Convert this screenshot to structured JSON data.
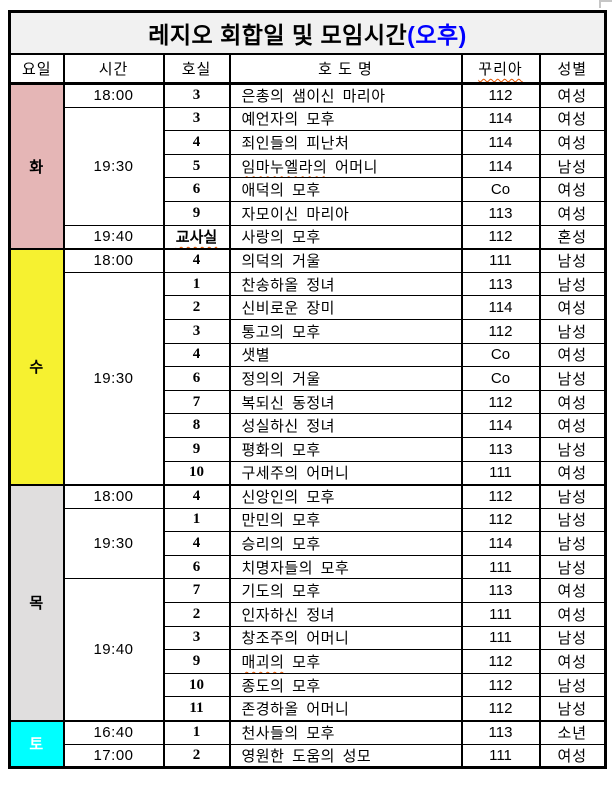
{
  "title": {
    "main": "레지오 회합일 및 모임시간",
    "suffix": "(오후)",
    "suffix_color": "#0000ff"
  },
  "header": [
    "요일",
    "시간",
    "호실",
    "호 도 명",
    "꾸리아",
    "성별"
  ],
  "misspelled_words": [
    "꾸리아",
    "임마누엘라의",
    "교사실",
    "매괴의"
  ],
  "colors": {
    "tue_bg": "#e5b6b6",
    "wed_bg": "#f6f130",
    "thu_bg": "#e0dede",
    "sat_bg": "#00ffff",
    "sat_text": "#ffffff",
    "title_bg": "#f1f1f1",
    "squiggle": "#e25400",
    "border": "#000000"
  },
  "sections": [
    {
      "day": "화",
      "bg": "#e5b6b6",
      "fg": "#000000",
      "groups": [
        {
          "time": "18:00",
          "rows": [
            {
              "room": "3",
              "name": "은총의 샘이신 마리아",
              "curia": "112",
              "gender": "여성"
            }
          ]
        },
        {
          "time": "19:30",
          "rows": [
            {
              "room": "3",
              "name": "예언자의 모후",
              "curia": "114",
              "gender": "여성"
            },
            {
              "room": "4",
              "name": "죄인들의 피난처",
              "curia": "114",
              "gender": "여성"
            },
            {
              "room": "5",
              "name": "임마누엘라의 어머니",
              "curia": "114",
              "gender": "남성"
            },
            {
              "room": "6",
              "name": "애덕의 모후",
              "curia": "Co",
              "gender": "여성"
            },
            {
              "room": "9",
              "name": "자모이신 마리아",
              "curia": "113",
              "gender": "여성"
            }
          ]
        },
        {
          "time": "19:40",
          "rows": [
            {
              "room": "교사실",
              "name": "사랑의 모후",
              "curia": "112",
              "gender": "혼성"
            }
          ]
        }
      ]
    },
    {
      "day": "수",
      "bg": "#f6f130",
      "fg": "#000000",
      "groups": [
        {
          "time": "18:00",
          "rows": [
            {
              "room": "4",
              "name": "의덕의 거울",
              "curia": "111",
              "gender": "남성"
            }
          ]
        },
        {
          "time": "19:30",
          "rows": [
            {
              "room": "1",
              "name": "찬송하올 정녀",
              "curia": "113",
              "gender": "남성"
            },
            {
              "room": "2",
              "name": "신비로운 장미",
              "curia": "114",
              "gender": "여성"
            },
            {
              "room": "3",
              "name": "통고의 모후",
              "curia": "112",
              "gender": "남성"
            },
            {
              "room": "4",
              "name": "샛별",
              "curia": "Co",
              "gender": "여성"
            },
            {
              "room": "6",
              "name": "정의의 거울",
              "curia": "Co",
              "gender": "남성"
            },
            {
              "room": "7",
              "name": "복되신 동정녀",
              "curia": "112",
              "gender": "여성"
            },
            {
              "room": "8",
              "name": "성실하신 정녀",
              "curia": "114",
              "gender": "여성"
            },
            {
              "room": "9",
              "name": "평화의 모후",
              "curia": "113",
              "gender": "남성"
            },
            {
              "room": "10",
              "name": "구세주의 어머니",
              "curia": "111",
              "gender": "여성"
            }
          ]
        }
      ]
    },
    {
      "day": "목",
      "bg": "#e0dede",
      "fg": "#000000",
      "groups": [
        {
          "time": "18:00",
          "rows": [
            {
              "room": "4",
              "name": "신앙인의 모후",
              "curia": "112",
              "gender": "남성"
            }
          ]
        },
        {
          "time": "19:30",
          "rows": [
            {
              "room": "1",
              "name": "만민의 모후",
              "curia": "112",
              "gender": "남성"
            },
            {
              "room": "4",
              "name": "승리의 모후",
              "curia": "114",
              "gender": "남성"
            },
            {
              "room": "6",
              "name": "치명자들의 모후",
              "curia": "111",
              "gender": "남성"
            }
          ]
        },
        {
          "time": "19:40",
          "rows": [
            {
              "room": "7",
              "name": "기도의 모후",
              "curia": "113",
              "gender": "여성"
            },
            {
              "room": "2",
              "name": "인자하신 정녀",
              "curia": "111",
              "gender": "여성"
            },
            {
              "room": "3",
              "name": "창조주의 어머니",
              "curia": "111",
              "gender": "남성"
            },
            {
              "room": "9",
              "name": "매괴의 모후",
              "curia": "112",
              "gender": "여성"
            },
            {
              "room": "10",
              "name": "종도의 모후",
              "curia": "112",
              "gender": "남성"
            },
            {
              "room": "11",
              "name": "존경하올 어머니",
              "curia": "112",
              "gender": "남성"
            }
          ]
        }
      ]
    },
    {
      "day": "토",
      "bg": "#00ffff",
      "fg": "#ffffff",
      "groups": [
        {
          "time": "16:40",
          "rows": [
            {
              "room": "1",
              "name": "천사들의 모후",
              "curia": "113",
              "gender": "소년"
            }
          ]
        },
        {
          "time": "17:00",
          "rows": [
            {
              "room": "2",
              "name": "영원한 도움의 성모",
              "curia": "111",
              "gender": "여성"
            }
          ]
        }
      ]
    }
  ]
}
